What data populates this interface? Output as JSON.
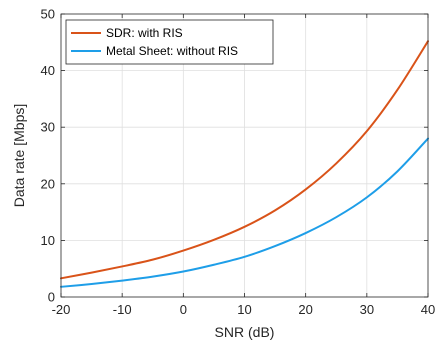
{
  "chart_data": {
    "type": "line",
    "title": "",
    "xlabel": "SNR (dB)",
    "ylabel": "Data rate [Mbps]",
    "xlim": [
      -20,
      40
    ],
    "ylim": [
      0,
      50
    ],
    "xticks": [
      -20,
      -10,
      0,
      10,
      20,
      30,
      40
    ],
    "yticks": [
      0,
      10,
      20,
      30,
      40,
      50
    ],
    "xtick_labels": [
      "-20",
      "-10",
      "0",
      "10",
      "20",
      "30",
      "40"
    ],
    "ytick_labels": [
      "0",
      "10",
      "20",
      "30",
      "40",
      "50"
    ],
    "grid": true,
    "legend_position": "top-left",
    "x": [
      -20,
      -15,
      -10,
      -5,
      0,
      5,
      10,
      15,
      20,
      25,
      30,
      35,
      40
    ],
    "series": [
      {
        "name": "SDR: with RIS",
        "color": "#D95319",
        "values": [
          3.3,
          4.3,
          5.4,
          6.6,
          8.2,
          10.1,
          12.4,
          15.3,
          19.0,
          23.6,
          29.3,
          36.6,
          45.2
        ]
      },
      {
        "name": "Metal Sheet: without RIS",
        "color": "#1E9EE8",
        "values": [
          1.8,
          2.3,
          2.9,
          3.6,
          4.5,
          5.7,
          7.1,
          9.0,
          11.3,
          14.1,
          17.6,
          22.2,
          28.0
        ]
      }
    ]
  }
}
